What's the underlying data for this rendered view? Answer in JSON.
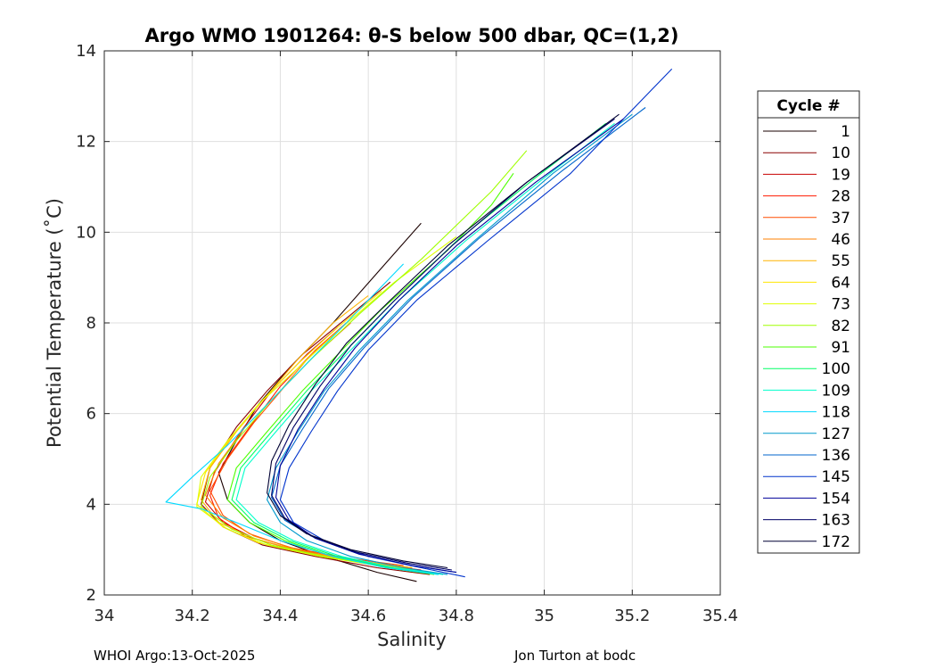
{
  "chart_data": {
    "type": "line",
    "title": "Argo WMO 1901264: θ-S below 500 dbar,  QC=(1,2)",
    "xlabel": "Salinity",
    "ylabel": "Potential Temperature (˚C)",
    "xlim": [
      34,
      35.4
    ],
    "ylim": [
      2,
      14
    ],
    "xticks": [
      34,
      34.2,
      34.4,
      34.6,
      34.8,
      35,
      35.2,
      35.4
    ],
    "xtick_labels": [
      "34",
      "34.2",
      "34.4",
      "34.6",
      "34.8",
      "35",
      "35.2",
      "35.4"
    ],
    "yticks": [
      2,
      4,
      6,
      8,
      10,
      12,
      14
    ],
    "ytick_labels": [
      "2",
      "4",
      "6",
      "8",
      "10",
      "12",
      "14"
    ],
    "grid": true,
    "legend": {
      "title": "Cycle #",
      "placement": "right",
      "entries": [
        "1",
        "10",
        "19",
        "28",
        "37",
        "46",
        "55",
        "64",
        "73",
        "82",
        "91",
        "100",
        "109",
        "118",
        "127",
        "136",
        "145",
        "154",
        "163",
        "172"
      ],
      "colors": [
        "#1a0000",
        "#8a0000",
        "#c80000",
        "#ff1a00",
        "#ff4d00",
        "#ff8000",
        "#ffb300",
        "#ffe600",
        "#e0ff00",
        "#a0ff00",
        "#4dff00",
        "#00ff66",
        "#00ffcc",
        "#00d9ff",
        "#0099cc",
        "#0066cc",
        "#0033cc",
        "#000099",
        "#000066",
        "#000033"
      ]
    },
    "series": [
      {
        "name": "1",
        "x": [
          34.71,
          34.62,
          34.5,
          34.4,
          34.33,
          34.28,
          34.26,
          34.3,
          34.35,
          34.42,
          34.52,
          34.62,
          34.72
        ],
        "y": [
          2.3,
          2.5,
          2.85,
          3.2,
          3.6,
          4.1,
          4.7,
          5.4,
          6.2,
          7.0,
          8.0,
          9.1,
          10.2
        ]
      },
      {
        "name": "10",
        "x": [
          34.74,
          34.62,
          34.48,
          34.36,
          34.27,
          34.22,
          34.24,
          34.3,
          34.37,
          34.45,
          34.55,
          34.65
        ],
        "y": [
          2.45,
          2.6,
          2.85,
          3.1,
          3.5,
          4.0,
          4.8,
          5.7,
          6.5,
          7.3,
          8.1,
          8.9
        ]
      },
      {
        "name": "19",
        "x": [
          34.72,
          34.6,
          34.45,
          34.34,
          34.27,
          34.23,
          34.25,
          34.31,
          34.38,
          34.46,
          34.53
        ],
        "y": [
          2.55,
          2.7,
          2.95,
          3.25,
          3.6,
          4.05,
          4.7,
          5.6,
          6.5,
          7.3,
          7.9
        ]
      },
      {
        "name": "28",
        "x": [
          34.7,
          34.58,
          34.43,
          34.32,
          34.26,
          34.24,
          34.27,
          34.33,
          34.4,
          34.48,
          34.55
        ],
        "y": [
          2.6,
          2.75,
          3.0,
          3.3,
          3.7,
          4.2,
          4.9,
          5.7,
          6.6,
          7.4,
          8.0
        ]
      },
      {
        "name": "37",
        "x": [
          34.68,
          34.56,
          34.42,
          34.33,
          34.27,
          34.24,
          34.28,
          34.34,
          34.41,
          34.48,
          34.56
        ],
        "y": [
          2.65,
          2.8,
          3.05,
          3.35,
          3.75,
          4.3,
          5.0,
          5.8,
          6.6,
          7.3,
          8.0
        ]
      },
      {
        "name": "46",
        "x": [
          34.69,
          34.57,
          34.44,
          34.34,
          34.27,
          34.23,
          34.26,
          34.32,
          34.4,
          34.47,
          34.54
        ],
        "y": [
          2.6,
          2.75,
          3.0,
          3.3,
          3.7,
          4.2,
          4.9,
          5.7,
          6.5,
          7.3,
          7.9
        ]
      },
      {
        "name": "55",
        "x": [
          34.7,
          34.58,
          34.45,
          34.34,
          34.26,
          34.22,
          34.24,
          34.3,
          34.37,
          34.44,
          34.52,
          34.6
        ],
        "y": [
          2.6,
          2.75,
          2.95,
          3.25,
          3.6,
          4.1,
          4.8,
          5.6,
          6.4,
          7.2,
          8.0,
          8.6
        ]
      },
      {
        "name": "64",
        "x": [
          34.71,
          34.6,
          34.47,
          34.35,
          34.27,
          34.21,
          34.23,
          34.29,
          34.36,
          34.44,
          34.53,
          34.63
        ],
        "y": [
          2.55,
          2.7,
          2.9,
          3.15,
          3.5,
          4.0,
          4.7,
          5.5,
          6.3,
          7.1,
          7.9,
          8.7
        ]
      },
      {
        "name": "73",
        "x": [
          34.73,
          34.62,
          34.49,
          34.37,
          34.28,
          34.21,
          34.22,
          34.28,
          34.35,
          34.44,
          34.54,
          34.66,
          34.8
        ],
        "y": [
          2.5,
          2.65,
          2.85,
          3.1,
          3.45,
          3.95,
          4.6,
          5.4,
          6.2,
          7.0,
          7.9,
          8.9,
          9.9
        ]
      },
      {
        "name": "82",
        "x": [
          34.74,
          34.63,
          34.5,
          34.38,
          34.29,
          34.22,
          34.24,
          34.3,
          34.38,
          34.47,
          34.58,
          34.72,
          34.88,
          34.96
        ],
        "y": [
          2.5,
          2.65,
          2.85,
          3.1,
          3.45,
          3.95,
          4.6,
          5.4,
          6.3,
          7.2,
          8.2,
          9.4,
          10.9,
          11.8
        ]
      },
      {
        "name": "91",
        "x": [
          34.75,
          34.64,
          34.52,
          34.41,
          34.33,
          34.28,
          34.3,
          34.37,
          34.45,
          34.53,
          34.63,
          34.78,
          34.88,
          34.93
        ],
        "y": [
          2.45,
          2.6,
          2.85,
          3.2,
          3.6,
          4.1,
          4.8,
          5.6,
          6.5,
          7.3,
          8.3,
          9.6,
          10.6,
          11.3
        ]
      },
      {
        "name": "100",
        "x": [
          34.76,
          34.65,
          34.53,
          34.42,
          34.34,
          34.29,
          34.31,
          34.38,
          34.46,
          34.55,
          34.66,
          34.8,
          34.98,
          35.14
        ],
        "y": [
          2.45,
          2.6,
          2.85,
          3.2,
          3.6,
          4.1,
          4.8,
          5.6,
          6.5,
          7.4,
          8.5,
          9.8,
          11.2,
          12.4
        ]
      },
      {
        "name": "109",
        "x": [
          34.77,
          34.66,
          34.54,
          34.43,
          34.35,
          34.3,
          34.32,
          34.39,
          34.47,
          34.56,
          34.67,
          34.82,
          35.0,
          35.16
        ],
        "y": [
          2.45,
          2.6,
          2.85,
          3.2,
          3.6,
          4.1,
          4.8,
          5.6,
          6.5,
          7.4,
          8.5,
          9.8,
          11.2,
          12.4
        ]
      },
      {
        "name": "118",
        "x": [
          34.76,
          34.64,
          34.52,
          34.4,
          34.3,
          34.22,
          34.14,
          34.2,
          34.28,
          34.36,
          34.45,
          34.55,
          34.68
        ],
        "y": [
          2.45,
          2.6,
          2.85,
          3.2,
          3.6,
          3.9,
          4.05,
          4.6,
          5.3,
          6.1,
          7.0,
          8.0,
          9.3
        ]
      },
      {
        "name": "127",
        "x": [
          34.78,
          34.68,
          34.56,
          34.46,
          34.4,
          34.37,
          34.39,
          34.44,
          34.5,
          34.58,
          34.69,
          34.84,
          35.02,
          35.2
        ],
        "y": [
          2.45,
          2.6,
          2.85,
          3.2,
          3.6,
          4.1,
          4.8,
          5.6,
          6.5,
          7.4,
          8.5,
          9.8,
          11.3,
          12.6
        ]
      },
      {
        "name": "136",
        "x": [
          34.8,
          34.7,
          34.58,
          34.48,
          34.41,
          34.38,
          34.4,
          34.45,
          34.51,
          34.59,
          34.7,
          34.85,
          35.04,
          35.23
        ],
        "y": [
          2.5,
          2.65,
          2.9,
          3.25,
          3.65,
          4.15,
          4.85,
          5.65,
          6.55,
          7.45,
          8.55,
          9.85,
          11.35,
          12.75
        ]
      },
      {
        "name": "145",
        "x": [
          34.82,
          34.72,
          34.6,
          34.5,
          34.43,
          34.4,
          34.42,
          34.47,
          34.53,
          34.6,
          34.71,
          34.87,
          35.06,
          35.29
        ],
        "y": [
          2.4,
          2.6,
          2.85,
          3.2,
          3.6,
          4.1,
          4.8,
          5.6,
          6.5,
          7.4,
          8.5,
          9.8,
          11.3,
          13.6
        ]
      },
      {
        "name": "154",
        "x": [
          34.8,
          34.7,
          34.58,
          34.48,
          34.42,
          34.39,
          34.4,
          34.44,
          34.5,
          34.57,
          34.67,
          34.8,
          34.98,
          35.18
        ],
        "y": [
          2.5,
          2.65,
          2.9,
          3.25,
          3.65,
          4.15,
          4.85,
          5.65,
          6.55,
          7.45,
          8.5,
          9.7,
          11.1,
          12.5
        ]
      },
      {
        "name": "163",
        "x": [
          34.79,
          34.69,
          34.57,
          34.47,
          34.41,
          34.38,
          34.39,
          34.43,
          34.49,
          34.56,
          34.66,
          34.79,
          34.96,
          35.16
        ],
        "y": [
          2.55,
          2.7,
          2.95,
          3.3,
          3.7,
          4.2,
          4.9,
          5.7,
          6.6,
          7.5,
          8.5,
          9.7,
          11.1,
          12.5
        ]
      },
      {
        "name": "172",
        "x": [
          34.78,
          34.68,
          34.56,
          34.46,
          34.4,
          34.37,
          34.38,
          34.42,
          34.48,
          34.55,
          34.65,
          34.78,
          34.96,
          35.17
        ],
        "y": [
          2.6,
          2.75,
          3.0,
          3.35,
          3.75,
          4.25,
          4.95,
          5.75,
          6.65,
          7.55,
          8.5,
          9.7,
          11.1,
          12.6
        ]
      }
    ]
  },
  "footer": {
    "left": "WHOI Argo:13-Oct-2025",
    "right": "Jon Turton at bodc"
  }
}
